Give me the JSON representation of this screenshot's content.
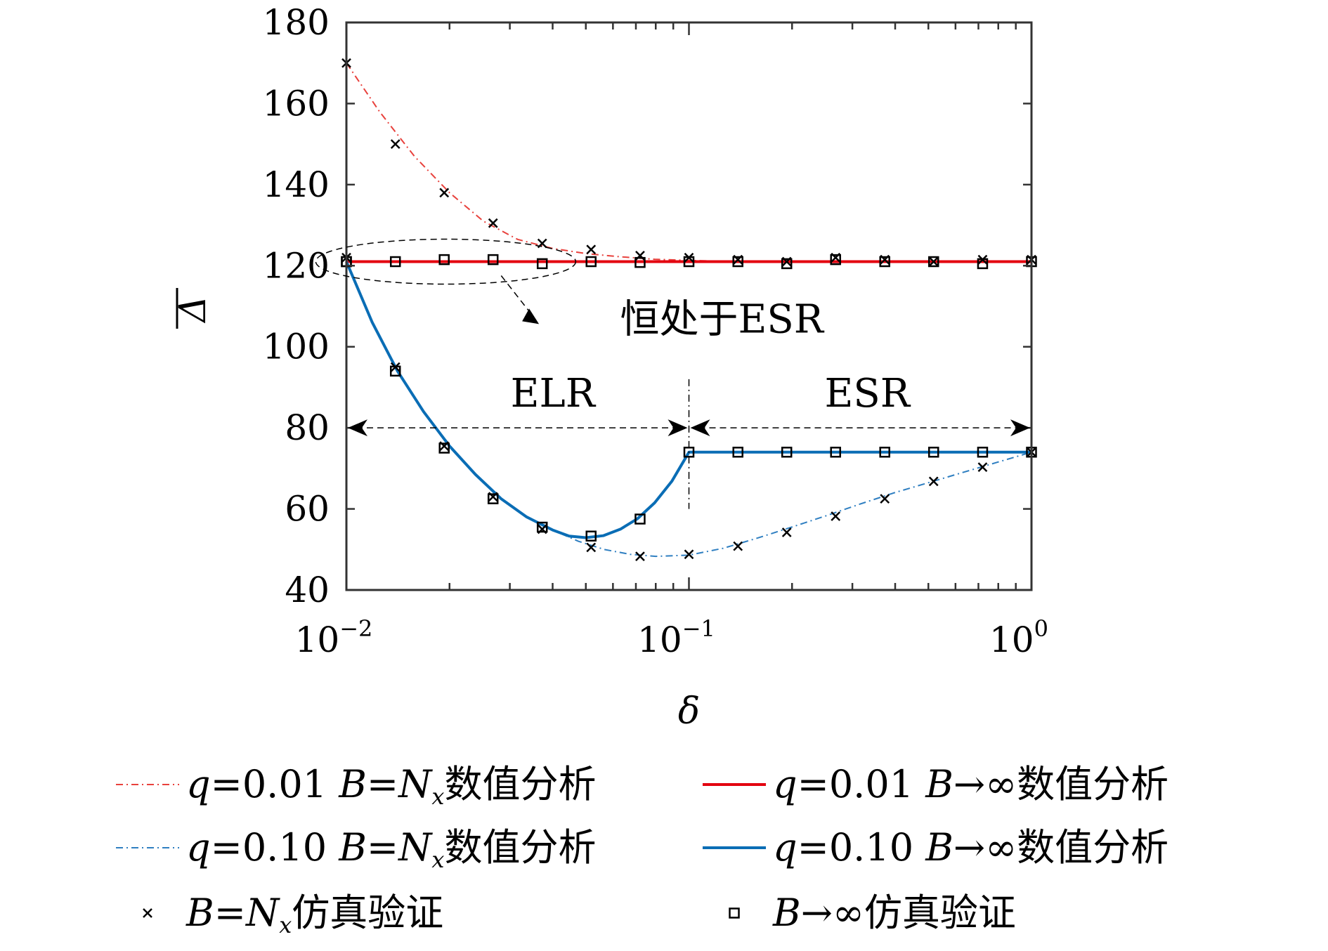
{
  "chart_data": {
    "type": "line",
    "xscale": "log",
    "xlim": [
      0.01,
      1
    ],
    "ylim": [
      40,
      180
    ],
    "xlabel": "δ",
    "ylabel": "Δ",
    "x_ticks": [
      {
        "base": "10",
        "exp": "−2"
      },
      {
        "base": "10",
        "exp": "−1"
      },
      {
        "base": "10",
        "exp": "0"
      }
    ],
    "y_ticks": [
      "40",
      "60",
      "80",
      "100",
      "120",
      "140",
      "160",
      "180"
    ],
    "series": [
      {
        "name": "q=0.01 B=Nx数值分析",
        "color": "#e8413c",
        "style": "dashdot",
        "x": [
          0.01,
          0.0125,
          0.0158,
          0.02,
          0.0251,
          0.0316,
          0.0398,
          0.05,
          0.063,
          0.0794,
          0.1,
          0.1259,
          0.1585,
          0.1995,
          0.3,
          0.5,
          1.0
        ],
        "y": [
          170,
          158,
          147,
          138,
          131,
          126.5,
          124.3,
          123.0,
          122.2,
          121.6,
          121.3,
          121.1,
          121.0,
          121.0,
          121.0,
          121.0,
          121.0
        ]
      },
      {
        "name": "q=0.01 B→∞数值分析",
        "color": "#e3000f",
        "style": "solid",
        "x": [
          0.01,
          1.0
        ],
        "y": [
          121.0,
          121.0
        ]
      },
      {
        "name": "q=0.10 B=Nx数值分析",
        "color": "#2f7fc1",
        "style": "dashdot",
        "x": [
          0.01,
          0.0119,
          0.0141,
          0.0168,
          0.02,
          0.0238,
          0.0283,
          0.0336,
          0.04,
          0.0476,
          0.0566,
          0.0673,
          0.08,
          0.1,
          0.1259,
          0.1585,
          0.1995,
          0.2512,
          0.3162,
          0.3981,
          0.5012,
          0.631,
          0.7943,
          1.0
        ],
        "y": [
          121,
          106,
          94,
          84,
          75.5,
          68.5,
          62.5,
          58,
          54.8,
          52.0,
          50.0,
          48.8,
          48.3,
          48.6,
          50.3,
          52.8,
          55.5,
          58.3,
          61.2,
          64.0,
          66.5,
          69.0,
          71.5,
          74.0
        ]
      },
      {
        "name": "q=0.10 B→∞数值分析",
        "color": "#0a6db5",
        "style": "solid",
        "x": [
          0.01,
          0.0119,
          0.0141,
          0.0168,
          0.02,
          0.0238,
          0.0283,
          0.0336,
          0.04,
          0.0447,
          0.05,
          0.0562,
          0.0631,
          0.0708,
          0.0794,
          0.0891,
          0.1,
          0.1,
          0.1259,
          0.1585,
          0.1995,
          0.2512,
          0.3162,
          0.3981,
          0.5012,
          0.631,
          0.7943,
          1.0
        ],
        "y": [
          121,
          106,
          94,
          84,
          75.5,
          68.5,
          62.5,
          58,
          54.8,
          53.3,
          52.9,
          53.4,
          55.0,
          57.6,
          61.5,
          66.8,
          74.0,
          74.0,
          74.0,
          74.0,
          74.0,
          74.0,
          74.0,
          74.0,
          74.0,
          74.0,
          74.0,
          74.0
        ]
      }
    ],
    "markers": [
      {
        "name": "B=Nx仿真验证",
        "symbol": "x",
        "x": [
          0.01,
          0.0139,
          0.0193,
          0.0268,
          0.0373,
          0.0518,
          0.072,
          0.1,
          0.139,
          0.193,
          0.268,
          0.373,
          0.518,
          0.72,
          1.0,
          0.01,
          0.0139,
          0.0193,
          0.0268,
          0.0373,
          0.0518,
          0.072,
          0.1,
          0.139,
          0.193,
          0.268,
          0.373,
          0.518,
          0.72,
          1.0
        ],
        "y": [
          170,
          150,
          138,
          130.5,
          125.5,
          124,
          122.5,
          122,
          121.5,
          121,
          122,
          121.5,
          121,
          121.5,
          121.5,
          122,
          95,
          75.5,
          63,
          55,
          50.5,
          48.3,
          48.8,
          50.8,
          54.2,
          58.2,
          62.5,
          66.8,
          70.3,
          74
        ]
      },
      {
        "name": "B→∞仿真验证",
        "symbol": "square",
        "x": [
          0.01,
          0.0139,
          0.0193,
          0.0268,
          0.0373,
          0.0518,
          0.072,
          0.1,
          0.139,
          0.193,
          0.268,
          0.373,
          0.518,
          0.72,
          1.0,
          0.01,
          0.0139,
          0.0193,
          0.0268,
          0.0373,
          0.0518,
          0.072,
          0.1,
          0.139,
          0.193,
          0.268,
          0.373,
          0.518,
          0.72,
          1.0
        ],
        "y": [
          121,
          121,
          121.5,
          121.5,
          120.5,
          121,
          120.8,
          121,
          121,
          120.5,
          121.5,
          121,
          121,
          120.5,
          121,
          121,
          94,
          75,
          62.5,
          55.5,
          53.3,
          57.5,
          74,
          74,
          74,
          74,
          74,
          74,
          74,
          74
        ]
      }
    ],
    "annotations": {
      "ellipse_note": "恒处于ESR",
      "region_left": "ELR",
      "region_right": "ESR",
      "boundary_x": 0.1,
      "region_arrow_y": 80,
      "ellipse_center": {
        "x": 0.0195,
        "y": 121
      },
      "note_anchor": {
        "x": 0.034,
        "y": 107
      },
      "note_text_at": {
        "x": 0.066,
        "y": 107
      }
    },
    "legend": {
      "position": "bottom",
      "columns": 2,
      "entries": [
        {
          "id": "q001-finite",
          "q": "q",
          "qval": "=0.01",
          "b": "B",
          "rel": "=",
          "n": "N",
          "sub": "x",
          "suffix": "数值分析"
        },
        {
          "id": "q001-inf",
          "q": "q",
          "qval": "=0.01",
          "b": "B",
          "rel": "→∞",
          "n": "",
          "sub": "",
          "suffix": "数值分析"
        },
        {
          "id": "q010-finite",
          "q": "q",
          "qval": "=0.10",
          "b": "B",
          "rel": "=",
          "n": "N",
          "sub": "x",
          "suffix": "数值分析"
        },
        {
          "id": "q010-inf",
          "q": "q",
          "qval": "=0.10",
          "b": "B",
          "rel": "→∞",
          "n": "",
          "sub": "",
          "suffix": "数值分析"
        },
        {
          "id": "sim-finite",
          "q": "",
          "qval": "",
          "b": "B",
          "rel": "=",
          "n": "N",
          "sub": "x",
          "suffix": "仿真验证"
        },
        {
          "id": "sim-inf",
          "q": "",
          "qval": "",
          "b": "B",
          "rel": "→∞",
          "n": "",
          "sub": "",
          "suffix": "仿真验证"
        }
      ]
    }
  }
}
